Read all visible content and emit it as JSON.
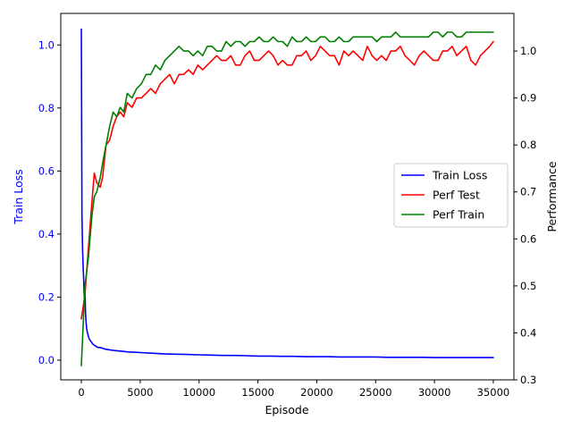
{
  "chart_data": {
    "type": "line",
    "title": "",
    "xlabel": "Episode",
    "ylabel_left": "Train Loss",
    "ylabel_right": "Performance",
    "xlim": [
      -1750,
      36750
    ],
    "ylim_left": [
      -0.0625,
      1.1
    ],
    "ylim_right": [
      0.3,
      1.08
    ],
    "x_ticks": [
      0,
      5000,
      10000,
      15000,
      20000,
      25000,
      30000,
      35000
    ],
    "y_ticks_left": [
      0.0,
      0.2,
      0.4,
      0.6,
      0.8,
      1.0
    ],
    "y_ticks_right": [
      0.3,
      0.4,
      0.5,
      0.6,
      0.7,
      0.8,
      0.9,
      1.0
    ],
    "grid": false,
    "legend_position": "center-right",
    "colors": {
      "train_loss": "#0000ff",
      "perf_test": "#ff0000",
      "perf_train": "#008000",
      "left_axis_text": "#0000ff",
      "right_axis_text": "#000000"
    },
    "series": [
      {
        "name": "Train Loss",
        "axis": "left",
        "x": [
          0,
          50,
          100,
          150,
          200,
          250,
          300,
          350,
          400,
          450,
          500,
          600,
          700,
          800,
          900,
          1000,
          1200,
          1400,
          1600,
          1800,
          2000,
          2500,
          3000,
          3500,
          4000,
          4500,
          5000,
          6000,
          7000,
          8000,
          9000,
          10000,
          11000,
          12000,
          13000,
          14000,
          15000,
          16000,
          17000,
          18000,
          19000,
          20000,
          21000,
          22000,
          23000,
          24000,
          25000,
          26000,
          27000,
          28000,
          29000,
          30000,
          31000,
          32000,
          33000,
          34000,
          35000
        ],
        "values": [
          1.05,
          0.46,
          0.35,
          0.3,
          0.25,
          0.2,
          0.23,
          0.15,
          0.12,
          0.1,
          0.09,
          0.075,
          0.065,
          0.06,
          0.055,
          0.05,
          0.045,
          0.04,
          0.04,
          0.038,
          0.035,
          0.032,
          0.03,
          0.028,
          0.026,
          0.025,
          0.024,
          0.022,
          0.02,
          0.019,
          0.018,
          0.017,
          0.016,
          0.015,
          0.015,
          0.014,
          0.013,
          0.013,
          0.012,
          0.012,
          0.011,
          0.011,
          0.011,
          0.01,
          0.01,
          0.01,
          0.01,
          0.009,
          0.009,
          0.009,
          0.009,
          0.008,
          0.008,
          0.008,
          0.008,
          0.008,
          0.008
        ]
      },
      {
        "name": "Perf Test",
        "axis": "right",
        "x": [
          0,
          300,
          600,
          900,
          1100,
          1300,
          1600,
          1800,
          2100,
          2400,
          2700,
          3000,
          3300,
          3600,
          3900,
          4300,
          4700,
          5100,
          5500,
          5900,
          6300,
          6700,
          7100,
          7500,
          7900,
          8300,
          8700,
          9100,
          9500,
          9900,
          10300,
          10700,
          11100,
          11500,
          11900,
          12300,
          12700,
          13100,
          13500,
          13900,
          14300,
          14700,
          15100,
          15500,
          15900,
          16300,
          16700,
          17100,
          17500,
          17900,
          18300,
          18700,
          19100,
          19500,
          19900,
          20300,
          20700,
          21100,
          21500,
          21900,
          22300,
          22700,
          23100,
          23500,
          23900,
          24300,
          24700,
          25100,
          25500,
          25900,
          26300,
          26700,
          27100,
          27500,
          27900,
          28300,
          28700,
          29100,
          29500,
          29900,
          30300,
          30700,
          31100,
          31500,
          31900,
          32300,
          32700,
          33100,
          33500,
          33900,
          34300,
          34700,
          35000
        ],
        "values": [
          0.43,
          0.48,
          0.58,
          0.68,
          0.74,
          0.72,
          0.71,
          0.73,
          0.8,
          0.81,
          0.84,
          0.86,
          0.87,
          0.86,
          0.89,
          0.88,
          0.9,
          0.9,
          0.91,
          0.92,
          0.91,
          0.93,
          0.94,
          0.95,
          0.93,
          0.95,
          0.95,
          0.96,
          0.95,
          0.97,
          0.96,
          0.97,
          0.98,
          0.99,
          0.98,
          0.98,
          0.99,
          0.97,
          0.97,
          0.99,
          1.0,
          0.98,
          0.98,
          0.99,
          1.0,
          0.99,
          0.97,
          0.98,
          0.97,
          0.97,
          0.99,
          0.99,
          1.0,
          0.98,
          0.99,
          1.01,
          1.0,
          0.99,
          0.99,
          0.97,
          1.0,
          0.99,
          1.0,
          0.99,
          0.98,
          1.01,
          0.99,
          0.98,
          0.99,
          0.98,
          1.0,
          1.0,
          1.01,
          0.99,
          0.98,
          0.97,
          0.99,
          1.0,
          0.99,
          0.98,
          0.98,
          1.0,
          1.0,
          1.01,
          0.99,
          1.0,
          1.01,
          0.98,
          0.97,
          0.99,
          1.0,
          1.01,
          1.02
        ]
      },
      {
        "name": "Perf Train",
        "axis": "right",
        "x": [
          0,
          300,
          600,
          900,
          1100,
          1300,
          1600,
          1800,
          2100,
          2400,
          2700,
          3000,
          3300,
          3600,
          3900,
          4300,
          4700,
          5100,
          5500,
          5900,
          6300,
          6700,
          7100,
          7500,
          7900,
          8300,
          8700,
          9100,
          9500,
          9900,
          10300,
          10700,
          11100,
          11500,
          11900,
          12300,
          12700,
          13100,
          13500,
          13900,
          14300,
          14700,
          15100,
          15500,
          15900,
          16300,
          16700,
          17100,
          17500,
          17900,
          18300,
          18700,
          19100,
          19500,
          19900,
          20300,
          20700,
          21100,
          21500,
          21900,
          22300,
          22700,
          23100,
          23500,
          23900,
          24300,
          24700,
          25100,
          25500,
          25900,
          26300,
          26700,
          27100,
          27500,
          27900,
          28300,
          28700,
          29100,
          29500,
          29900,
          30300,
          30700,
          31100,
          31500,
          31900,
          32300,
          32700,
          33100,
          33500,
          33900,
          34300,
          34700,
          35000
        ],
        "values": [
          0.33,
          0.5,
          0.56,
          0.65,
          0.69,
          0.7,
          0.73,
          0.76,
          0.8,
          0.84,
          0.87,
          0.86,
          0.88,
          0.87,
          0.91,
          0.9,
          0.92,
          0.93,
          0.95,
          0.95,
          0.97,
          0.96,
          0.98,
          0.99,
          1.0,
          1.01,
          1.0,
          1.0,
          0.99,
          1.0,
          0.99,
          1.01,
          1.01,
          1.0,
          1.0,
          1.02,
          1.01,
          1.02,
          1.02,
          1.01,
          1.02,
          1.02,
          1.03,
          1.02,
          1.02,
          1.03,
          1.02,
          1.02,
          1.01,
          1.03,
          1.02,
          1.02,
          1.03,
          1.02,
          1.02,
          1.03,
          1.03,
          1.02,
          1.02,
          1.03,
          1.02,
          1.02,
          1.03,
          1.03,
          1.03,
          1.03,
          1.03,
          1.02,
          1.03,
          1.03,
          1.03,
          1.04,
          1.03,
          1.03,
          1.03,
          1.03,
          1.03,
          1.03,
          1.03,
          1.04,
          1.04,
          1.03,
          1.04,
          1.04,
          1.03,
          1.03,
          1.04,
          1.04,
          1.04,
          1.04,
          1.04,
          1.04,
          1.04
        ]
      }
    ]
  }
}
